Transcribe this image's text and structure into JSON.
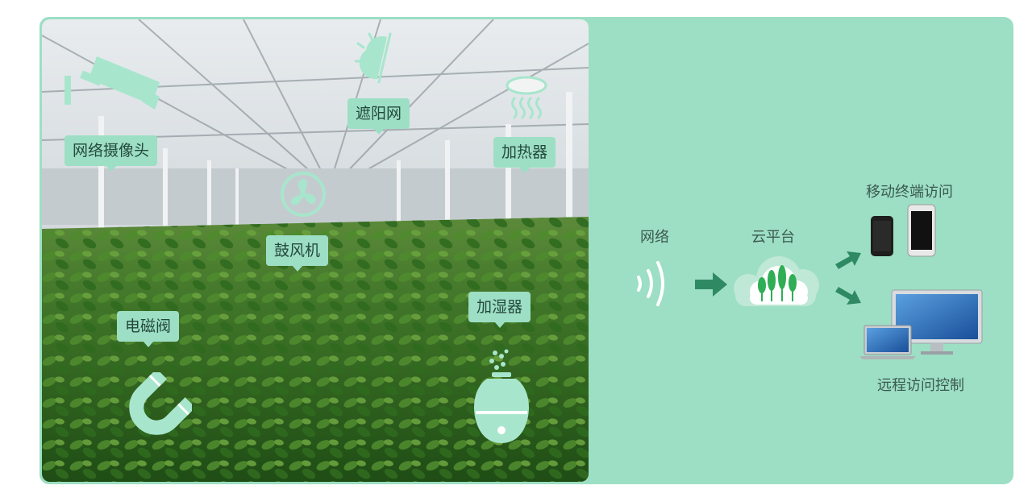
{
  "devices": {
    "camera": {
      "label": "网络摄像头",
      "icon": "camera-icon"
    },
    "shade": {
      "label": "遮阳网",
      "icon": "shade-net-icon"
    },
    "heater": {
      "label": "加热器",
      "icon": "heater-icon"
    },
    "fan": {
      "label": "鼓风机",
      "icon": "fan-icon"
    },
    "valve": {
      "label": "电磁阀",
      "icon": "magnet-icon"
    },
    "humidifier": {
      "label": "加湿器",
      "icon": "humidifier-icon"
    }
  },
  "flow": {
    "network": "网络",
    "cloud": "云平台",
    "mobile": "移动终端访问",
    "remote": "远程访问控制"
  },
  "colors": {
    "panel": "#9ddfc4",
    "icon": "#a7e6cc",
    "arrow": "#2f8a64",
    "tree": "#2fae55",
    "text": "#3b5a50"
  }
}
